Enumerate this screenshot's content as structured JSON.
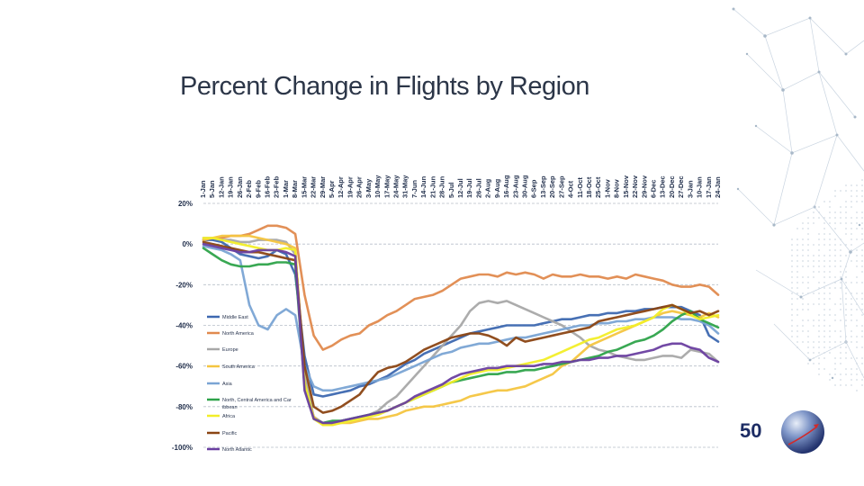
{
  "slide": {
    "title": "Percent Change in Flights by Region",
    "logo_text": "50"
  },
  "chart_data": {
    "type": "line",
    "title": "Percent Change in Flights by Region",
    "xlabel": "",
    "ylabel": "",
    "ylim": [
      -100,
      20
    ],
    "grid": true,
    "legend_position": "left-bottom",
    "yticks": [
      {
        "value": 20,
        "label": "20%"
      },
      {
        "value": 0,
        "label": "0%"
      },
      {
        "value": -20,
        "label": "-20%"
      },
      {
        "value": -40,
        "label": "-40%"
      },
      {
        "value": -60,
        "label": "-60%"
      },
      {
        "value": -80,
        "label": "-80%"
      },
      {
        "value": -100,
        "label": "-100%"
      }
    ],
    "categories": [
      "1-Jan",
      "5-Jan",
      "12-Jan",
      "19-Jan",
      "26-Jan",
      "2-Feb",
      "9-Feb",
      "16-Feb",
      "23-Feb",
      "1-Mar",
      "8-Mar",
      "15-Mar",
      "22-Mar",
      "29-Mar",
      "5-Apr",
      "12-Apr",
      "19-Apr",
      "26-Apr",
      "3-May",
      "10-May",
      "17-May",
      "24-May",
      "31-May",
      "7-Jun",
      "14-Jun",
      "21-Jun",
      "28-Jun",
      "5-Jul",
      "12-Jul",
      "19-Jul",
      "26-Jul",
      "2-Aug",
      "9-Aug",
      "16-Aug",
      "23-Aug",
      "30-Aug",
      "6-Sep",
      "13-Sep",
      "20-Sep",
      "27-Sep",
      "4-Oct",
      "11-Oct",
      "18-Oct",
      "25-Oct",
      "1-Nov",
      "8-Nov",
      "15-Nov",
      "22-Nov",
      "29-Nov",
      "6-Dec",
      "13-Dec",
      "20-Dec",
      "27-Dec",
      "3-Jan",
      "10-Jan",
      "17-Jan",
      "24-Jan"
    ],
    "series": [
      {
        "name": "Middle East",
        "color": "#3d68b0",
        "values": [
          2,
          2,
          1,
          -2,
          -5,
          -6,
          -7,
          -6,
          -3,
          -5,
          -15,
          -55,
          -74,
          -75,
          -74,
          -73,
          -72,
          -70,
          -69,
          -67,
          -65,
          -62,
          -59,
          -57,
          -54,
          -52,
          -50,
          -48,
          -46,
          -44,
          -43,
          -42,
          -41,
          -40,
          -40,
          -40,
          -40,
          -39,
          -38,
          -37,
          -37,
          -36,
          -35,
          -35,
          -34,
          -34,
          -33,
          -33,
          -32,
          -32,
          -31,
          -31,
          -31,
          -33,
          -35,
          -45,
          -48
        ]
      },
      {
        "name": "North America",
        "color": "#e08a4e",
        "values": [
          2,
          3,
          3,
          4,
          4,
          5,
          7,
          9,
          9,
          8,
          5,
          -25,
          -45,
          -52,
          -50,
          -47,
          -45,
          -44,
          -40,
          -38,
          -35,
          -33,
          -30,
          -27,
          -26,
          -25,
          -23,
          -20,
          -17,
          -16,
          -15,
          -15,
          -16,
          -14,
          -15,
          -14,
          -15,
          -17,
          -15,
          -16,
          -16,
          -15,
          -16,
          -16,
          -17,
          -16,
          -17,
          -15,
          -16,
          -17,
          -18,
          -20,
          -21,
          -21,
          -20,
          -21,
          -25
        ]
      },
      {
        "name": "Europe",
        "color": "#a8a8a8",
        "values": [
          3,
          3,
          2,
          2,
          1,
          1,
          2,
          2,
          2,
          1,
          -5,
          -65,
          -85,
          -88,
          -88,
          -87,
          -86,
          -85,
          -84,
          -82,
          -78,
          -75,
          -70,
          -65,
          -60,
          -55,
          -50,
          -45,
          -40,
          -33,
          -29,
          -28,
          -29,
          -28,
          -30,
          -32,
          -34,
          -36,
          -38,
          -40,
          -43,
          -46,
          -50,
          -52,
          -53,
          -55,
          -56,
          -57,
          -57,
          -56,
          -55,
          -55,
          -56,
          -52,
          -53,
          -54,
          -58
        ]
      },
      {
        "name": "South America",
        "color": "#f4c540",
        "values": [
          2,
          3,
          4,
          4,
          4,
          4,
          3,
          2,
          1,
          0,
          -2,
          -70,
          -85,
          -89,
          -89,
          -88,
          -88,
          -87,
          -86,
          -86,
          -85,
          -84,
          -82,
          -81,
          -80,
          -80,
          -79,
          -78,
          -77,
          -75,
          -74,
          -73,
          -72,
          -72,
          -71,
          -70,
          -68,
          -66,
          -64,
          -60,
          -58,
          -54,
          -50,
          -48,
          -46,
          -44,
          -42,
          -40,
          -38,
          -36,
          -34,
          -33,
          -34,
          -35,
          -36,
          -34,
          -36
        ]
      },
      {
        "name": "Asia",
        "color": "#7aa4d4",
        "values": [
          -1,
          -2,
          -3,
          -5,
          -8,
          -30,
          -40,
          -42,
          -35,
          -32,
          -35,
          -60,
          -70,
          -72,
          -72,
          -71,
          -70,
          -69,
          -68,
          -67,
          -66,
          -64,
          -62,
          -60,
          -58,
          -56,
          -54,
          -53,
          -51,
          -50,
          -49,
          -49,
          -48,
          -47,
          -46,
          -46,
          -45,
          -44,
          -43,
          -42,
          -41,
          -40,
          -40,
          -39,
          -39,
          -38,
          -38,
          -37,
          -37,
          -36,
          -36,
          -36,
          -37,
          -37,
          -38,
          -40,
          -44
        ]
      },
      {
        "name": "North, Central America and Caribbean",
        "color": "#2ea34a",
        "values": [
          -2,
          -5,
          -8,
          -10,
          -11,
          -11,
          -10,
          -10,
          -9,
          -9,
          -10,
          -70,
          -86,
          -88,
          -87,
          -87,
          -86,
          -85,
          -84,
          -83,
          -82,
          -80,
          -78,
          -76,
          -74,
          -72,
          -70,
          -68,
          -67,
          -66,
          -65,
          -64,
          -64,
          -63,
          -63,
          -62,
          -62,
          -61,
          -60,
          -59,
          -58,
          -57,
          -56,
          -55,
          -53,
          -52,
          -50,
          -48,
          -47,
          -45,
          -42,
          -38,
          -35,
          -33,
          -37,
          -39,
          -41
        ]
      },
      {
        "name": "Africa",
        "color": "#f2ee28",
        "values": [
          3,
          3,
          2,
          1,
          0,
          -1,
          -2,
          -3,
          -3,
          -2,
          -3,
          -68,
          -86,
          -89,
          -89,
          -88,
          -87,
          -86,
          -85,
          -84,
          -82,
          -80,
          -78,
          -76,
          -74,
          -72,
          -70,
          -68,
          -66,
          -64,
          -63,
          -62,
          -62,
          -61,
          -60,
          -59,
          -58,
          -57,
          -55,
          -53,
          -51,
          -49,
          -47,
          -46,
          -44,
          -42,
          -41,
          -40,
          -38,
          -36,
          -32,
          -30,
          -32,
          -35,
          -37,
          -36,
          -35
        ]
      },
      {
        "name": "Pacific",
        "color": "#8b4513",
        "values": [
          1,
          0,
          -1,
          -2,
          -3,
          -4,
          -4,
          -5,
          -6,
          -7,
          -8,
          -60,
          -80,
          -83,
          -82,
          -80,
          -77,
          -74,
          -68,
          -63,
          -61,
          -60,
          -58,
          -55,
          -52,
          -50,
          -48,
          -46,
          -45,
          -44,
          -44,
          -45,
          -47,
          -50,
          -46,
          -48,
          -47,
          -46,
          -45,
          -44,
          -43,
          -42,
          -41,
          -38,
          -37,
          -36,
          -35,
          -34,
          -33,
          -32,
          -31,
          -30,
          -32,
          -34,
          -33,
          -35,
          -33
        ]
      },
      {
        "name": "North Atlantic",
        "color": "#6a3fa0",
        "values": [
          0,
          -1,
          -2,
          -3,
          -4,
          -4,
          -3,
          -3,
          -3,
          -4,
          -6,
          -72,
          -86,
          -88,
          -88,
          -87,
          -86,
          -85,
          -84,
          -83,
          -82,
          -80,
          -78,
          -75,
          -73,
          -71,
          -69,
          -66,
          -64,
          -63,
          -62,
          -61,
          -61,
          -60,
          -60,
          -60,
          -60,
          -59,
          -59,
          -58,
          -58,
          -57,
          -57,
          -56,
          -56,
          -55,
          -55,
          -54,
          -53,
          -52,
          -50,
          -49,
          -49,
          -51,
          -52,
          -56,
          -58
        ]
      }
    ]
  }
}
